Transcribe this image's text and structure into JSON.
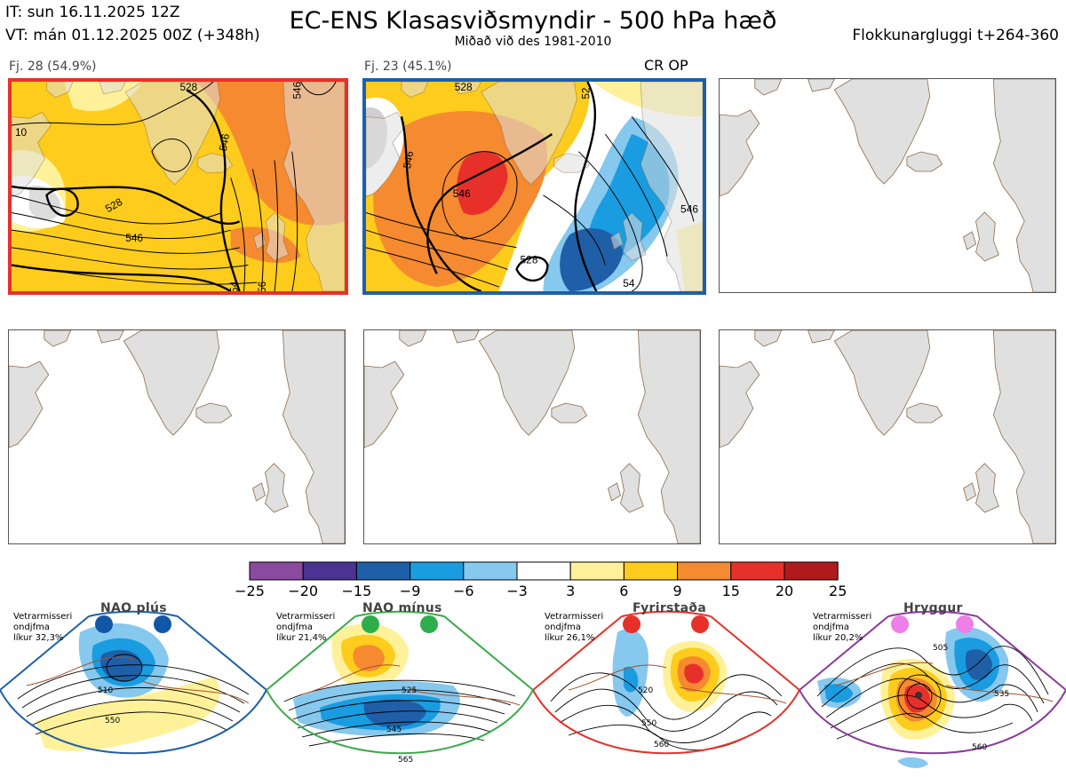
{
  "header": {
    "it": "IT: sun 16.11.2025 12Z",
    "vt": "VT: mán 01.12.2025 00Z  (+348h)",
    "title": "EC-ENS Klasasviðsmyndir - 500 hPa hæð",
    "subtitle": "Miðað við des 1981-2010",
    "window": "Flokkunargluggi t+264-360"
  },
  "panels": [
    {
      "label": "Fj. 28 (54.9%)",
      "border": "#e8302a"
    },
    {
      "label": "Fj. 23 (45.1%)",
      "border": "#1f5fa8",
      "tag": "CR OP"
    }
  ],
  "colors": {
    "land": "#e0e0e0",
    "coast": "#8b6a4a",
    "contour": "#000000",
    "scale": [
      "#8a4a9e",
      "#4a3392",
      "#1f5fa8",
      "#1a9ce0",
      "#86c8ee",
      "#ffffff",
      "#fff19a",
      "#fdcc1c",
      "#f58a30",
      "#e8302a",
      "#b11a1d"
    ]
  },
  "chart_data": {
    "type": "heatmap",
    "colorbar_ticks": [
      "−25",
      "−20",
      "−15",
      "−9",
      "−6",
      "−3",
      "3",
      "6",
      "9",
      "15",
      "20",
      "25"
    ],
    "panel1_contours": [
      "10",
      "528",
      "546",
      "546",
      "546",
      "54",
      "56",
      "528"
    ],
    "panel2_contours": [
      "528",
      "546",
      "528",
      "546",
      "52",
      "546",
      "54"
    ],
    "regimes": [
      {
        "name": "NAO plús",
        "meta": [
          "Vetrarmisseri",
          "ondjfma",
          "líkur 32,3%"
        ],
        "border": "#1f5fa8",
        "dot": "#1256a8",
        "labels": [
          "510",
          "550"
        ]
      },
      {
        "name": "NAO mínus",
        "meta": [
          "Vetrarmisseri",
          "ondjfma",
          "líkur 21,4%"
        ],
        "border": "#3aaa4a",
        "dot": "#2eae4a",
        "labels": [
          "525",
          "545",
          "565"
        ]
      },
      {
        "name": "Fyrirstaða",
        "meta": [
          "Vetrarmisseri",
          "ondjfma",
          "líkur 26,1%"
        ],
        "border": "#e8302a",
        "dot": "#e8302a",
        "labels": [
          "520",
          "550",
          "560"
        ]
      },
      {
        "name": "Hryggur",
        "meta": [
          "Vetrarmisseri",
          "ondjfma",
          "líkur 20,2%"
        ],
        "border": "#8a3a9a",
        "dot": "#ee7ee8",
        "labels": [
          "505",
          "535",
          "560"
        ]
      }
    ]
  }
}
